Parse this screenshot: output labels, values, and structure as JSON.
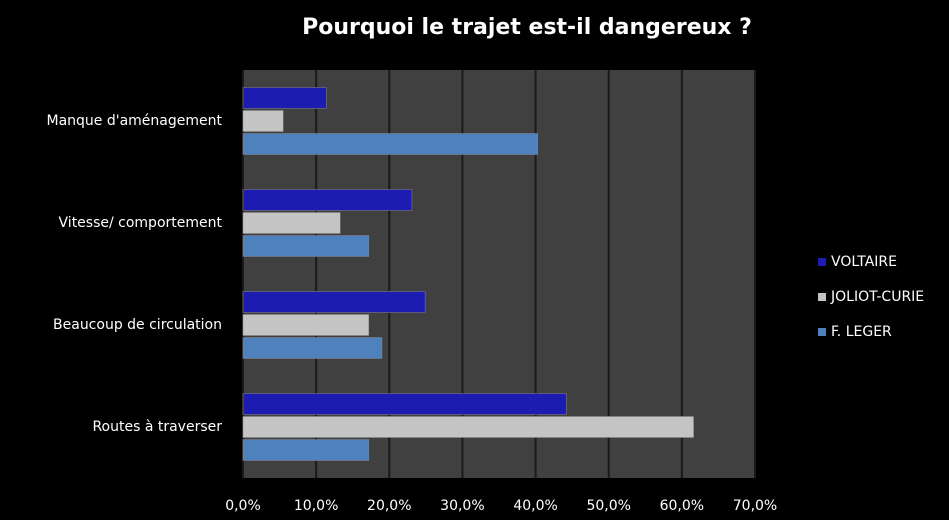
{
  "chart_data": {
    "type": "barh",
    "title": "Pourquoi le trajet est-il dangereux ?",
    "categories": [
      "Manque d'aménagement",
      "Vitesse/ comportement",
      "Beaucoup de circulation",
      "Routes à traverser"
    ],
    "series": [
      {
        "name": "VOLTAIRE",
        "color": "#1c1cb0",
        "values": [
          11.4,
          23.1,
          24.9,
          44.2
        ]
      },
      {
        "name": "JOLIOT-CURIE",
        "color": "#c4c4c4",
        "values": [
          5.5,
          13.3,
          17.2,
          61.6
        ]
      },
      {
        "name": "F. LEGER",
        "color": "#4f81bd",
        "values": [
          40.3,
          17.2,
          19.0,
          17.2
        ]
      }
    ],
    "xlim": [
      0,
      70
    ],
    "xticks": [
      {
        "value": 0,
        "label": "0,0%"
      },
      {
        "value": 10,
        "label": "10,0%"
      },
      {
        "value": 20,
        "label": "20,0%"
      },
      {
        "value": 30,
        "label": "30,0%"
      },
      {
        "value": 40,
        "label": "40,0%"
      },
      {
        "value": 50,
        "label": "50,0%"
      },
      {
        "value": 60,
        "label": "60,0%"
      },
      {
        "value": 70,
        "label": "70,0%"
      }
    ],
    "grid": true,
    "legend": "right"
  }
}
